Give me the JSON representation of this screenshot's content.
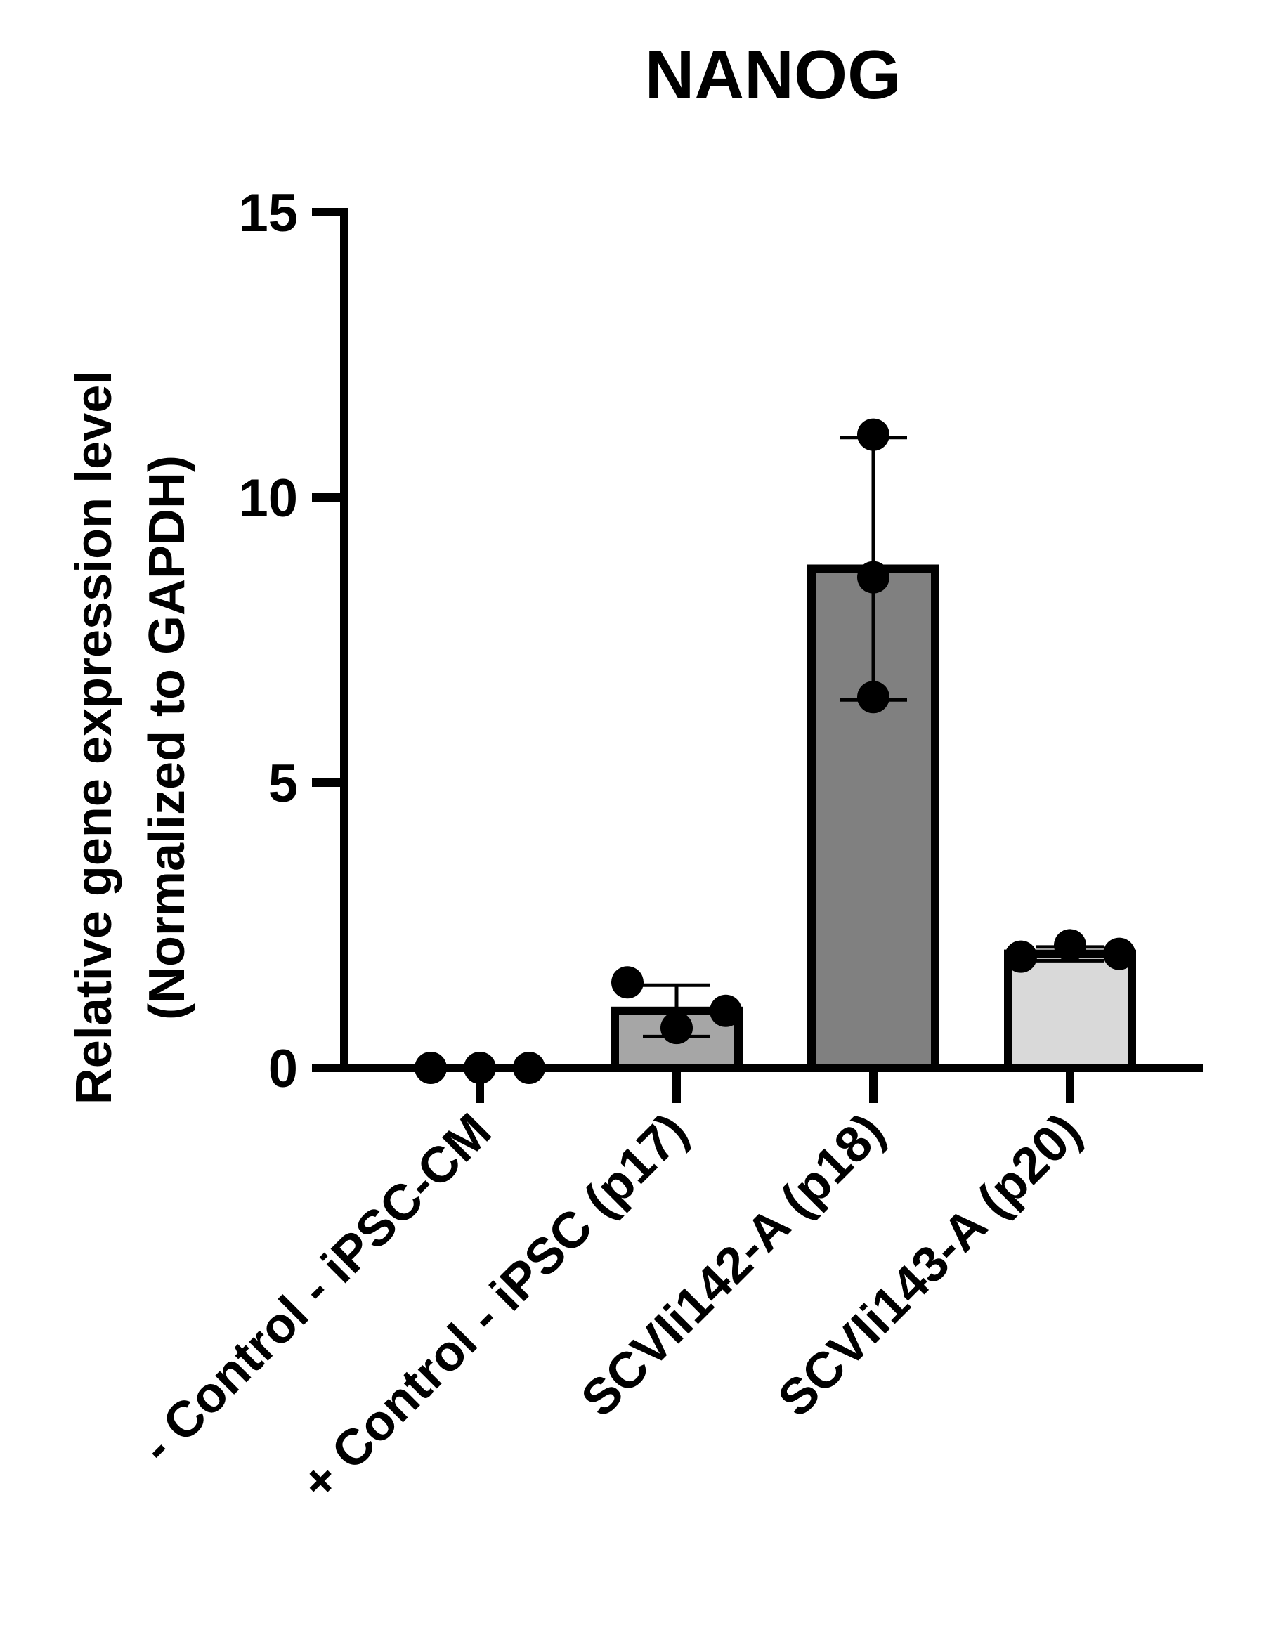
{
  "chart_data": {
    "type": "bar",
    "title": "NANOG",
    "ylabel_lines": [
      "Relative gene expression level",
      "(Normalized to GAPDH)"
    ],
    "xlabel": "",
    "ylim": [
      0,
      15
    ],
    "yticks": [
      0,
      5,
      10,
      15
    ],
    "grid": false,
    "legend": "none",
    "categories": [
      "- Control - iPSC-CM",
      "+ Control - iPSC (p17)",
      "SCVIi142-A (p18)",
      "SCVIi143-A (p20)"
    ],
    "values": [
      0,
      1.0,
      8.75,
      2.0
    ],
    "error": [
      0,
      0.45,
      2.3,
      0.12
    ],
    "points": [
      [
        0,
        0,
        0
      ],
      [
        1.5,
        0.7,
        1.0
      ],
      [
        11.1,
        8.6,
        6.5
      ],
      [
        1.95,
        2.15,
        2.0
      ]
    ],
    "colors": {
      "bars": [
        "#ffffff",
        "#a6a6a6",
        "#808080",
        "#d9d9d9"
      ],
      "outline": "#000000",
      "points": "#000000"
    }
  }
}
